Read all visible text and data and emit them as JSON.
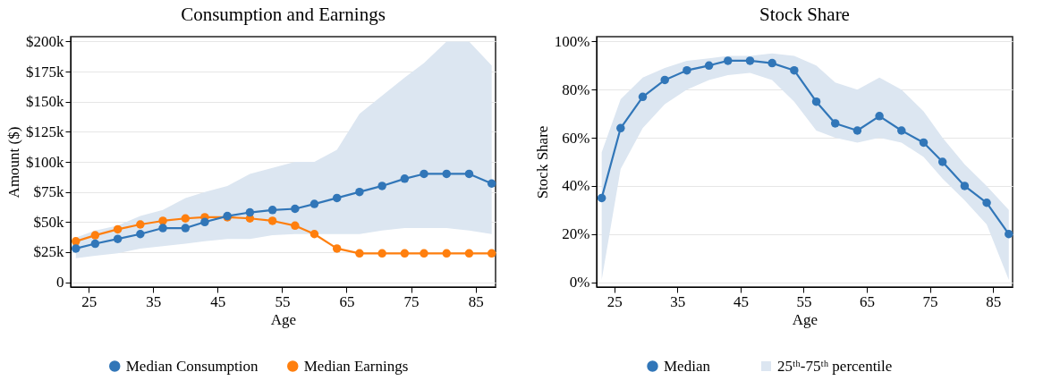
{
  "chart_data": [
    {
      "type": "line",
      "title": "Consumption and Earnings",
      "xlabel": "Age",
      "ylabel": "Amount ($)",
      "x": [
        23,
        26,
        29.5,
        33,
        36.5,
        40,
        43,
        46.5,
        50,
        53.5,
        57,
        60,
        63.5,
        67,
        70.5,
        74,
        77,
        80.5,
        84,
        87.5
      ],
      "xlim": [
        22.2,
        88.1
      ],
      "xticks": [
        25,
        35,
        45,
        55,
        65,
        75,
        85
      ],
      "ylim": [
        -4,
        204
      ],
      "yticks": [
        {
          "value": 0,
          "label": "0"
        },
        {
          "value": 25,
          "label": "$25k"
        },
        {
          "value": 50,
          "label": "$50k"
        },
        {
          "value": 75,
          "label": "$75k"
        },
        {
          "value": 100,
          "label": "$100k"
        },
        {
          "value": 125,
          "label": "$125k"
        },
        {
          "value": 150,
          "label": "$150k"
        },
        {
          "value": 175,
          "label": "$175k"
        },
        {
          "value": 200,
          "label": "$200k"
        }
      ],
      "grid": "y",
      "legend": "bottom",
      "marker": "circle",
      "line_style": "solid",
      "series": [
        {
          "name": "Median Consumption",
          "color": "#3176b8",
          "values": [
            28,
            32,
            36,
            40,
            45,
            45,
            50,
            55,
            58,
            60,
            61,
            65,
            70,
            75,
            80,
            86,
            90,
            90,
            90,
            82
          ],
          "lower": [
            20,
            22,
            24,
            28,
            30,
            32,
            34,
            36,
            36,
            39,
            40,
            40,
            40,
            40,
            43,
            45,
            45,
            45,
            43,
            40
          ],
          "upper": [
            37,
            43,
            47,
            55,
            60,
            70,
            75,
            80,
            90,
            95,
            100,
            100,
            110,
            140,
            155,
            170,
            182,
            200,
            200,
            180
          ]
        },
        {
          "name": "Median Earnings",
          "color": "#ff7f0e",
          "values": [
            34,
            39,
            44,
            48,
            51,
            53,
            54,
            54,
            53,
            51,
            47,
            40,
            28,
            24,
            24,
            24,
            24,
            24,
            24,
            24
          ]
        }
      ]
    },
    {
      "type": "line",
      "title": "Stock Share",
      "xlabel": "Age",
      "ylabel": "Stock Share",
      "x": [
        23,
        26,
        29.5,
        33,
        36.5,
        40,
        43,
        46.5,
        50,
        53.5,
        57,
        60,
        63.5,
        67,
        70.5,
        74,
        77,
        80.5,
        84,
        87.5
      ],
      "xlim": [
        22.2,
        88.1
      ],
      "xticks": [
        25,
        35,
        45,
        55,
        65,
        75,
        85
      ],
      "ylim": [
        -2,
        102
      ],
      "yticks": [
        {
          "value": 0,
          "label": "0%"
        },
        {
          "value": 20,
          "label": "20%"
        },
        {
          "value": 40,
          "label": "40%"
        },
        {
          "value": 60,
          "label": "60%"
        },
        {
          "value": 80,
          "label": "80%"
        },
        {
          "value": 100,
          "label": "100%"
        }
      ],
      "grid": "y",
      "legend": "bottom",
      "marker": "circle",
      "line_style": "solid",
      "series": [
        {
          "name": "Median",
          "color": "#3176b8",
          "values": [
            35,
            64,
            77,
            84,
            88,
            90,
            92,
            92,
            91,
            88,
            75,
            66,
            63,
            69,
            63,
            58,
            50,
            40,
            33,
            20
          ]
        },
        {
          "type": "area",
          "name": "25ᵗʰ-75ᵗʰ percentile",
          "color": "#dce6f1",
          "values": [
            null,
            null,
            null,
            null,
            null,
            null,
            null,
            null,
            null,
            null,
            null,
            null,
            null,
            null,
            null,
            null,
            null,
            null,
            null,
            null
          ],
          "lower": [
            1,
            47,
            64,
            74,
            80,
            84,
            86,
            87,
            84,
            75,
            63,
            60,
            58,
            60,
            58,
            52,
            43,
            34,
            24,
            1
          ],
          "upper": [
            54,
            76,
            85,
            89,
            92,
            93,
            94,
            94,
            95,
            94,
            90,
            83,
            80,
            85,
            80,
            71,
            60,
            49,
            40,
            30
          ]
        }
      ]
    }
  ]
}
